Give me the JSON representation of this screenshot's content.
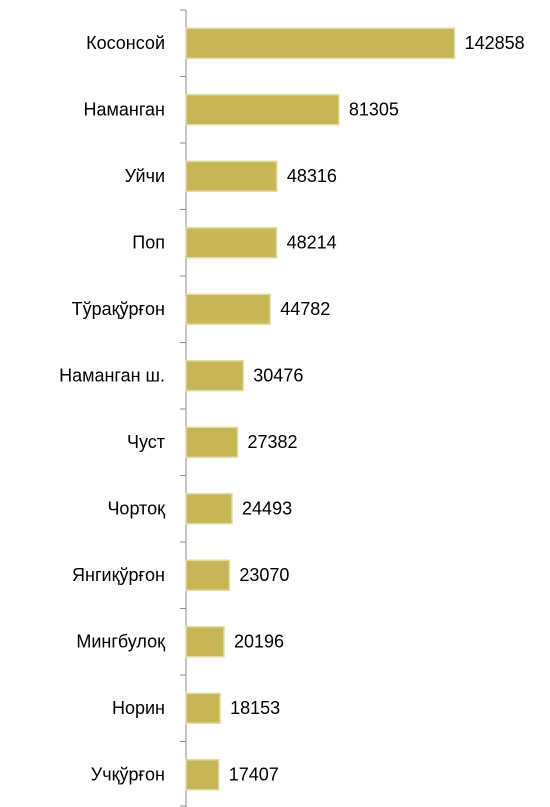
{
  "chart_data": {
    "type": "bar",
    "orientation": "horizontal",
    "categories": [
      "Косонсой",
      "Наманган",
      "Уйчи",
      "Поп",
      "Тўрақўрғон",
      "Наманган ш.",
      "Чуст",
      "Чортоқ",
      "Янгиқўрғон",
      "Мингбулоқ",
      "Норин",
      "Учқўрғон"
    ],
    "values": [
      142858,
      81305,
      48316,
      48214,
      44782,
      30476,
      27382,
      24493,
      23070,
      20196,
      18153,
      17407
    ],
    "color": "#c6b655",
    "xlim": [
      0,
      150000
    ]
  }
}
